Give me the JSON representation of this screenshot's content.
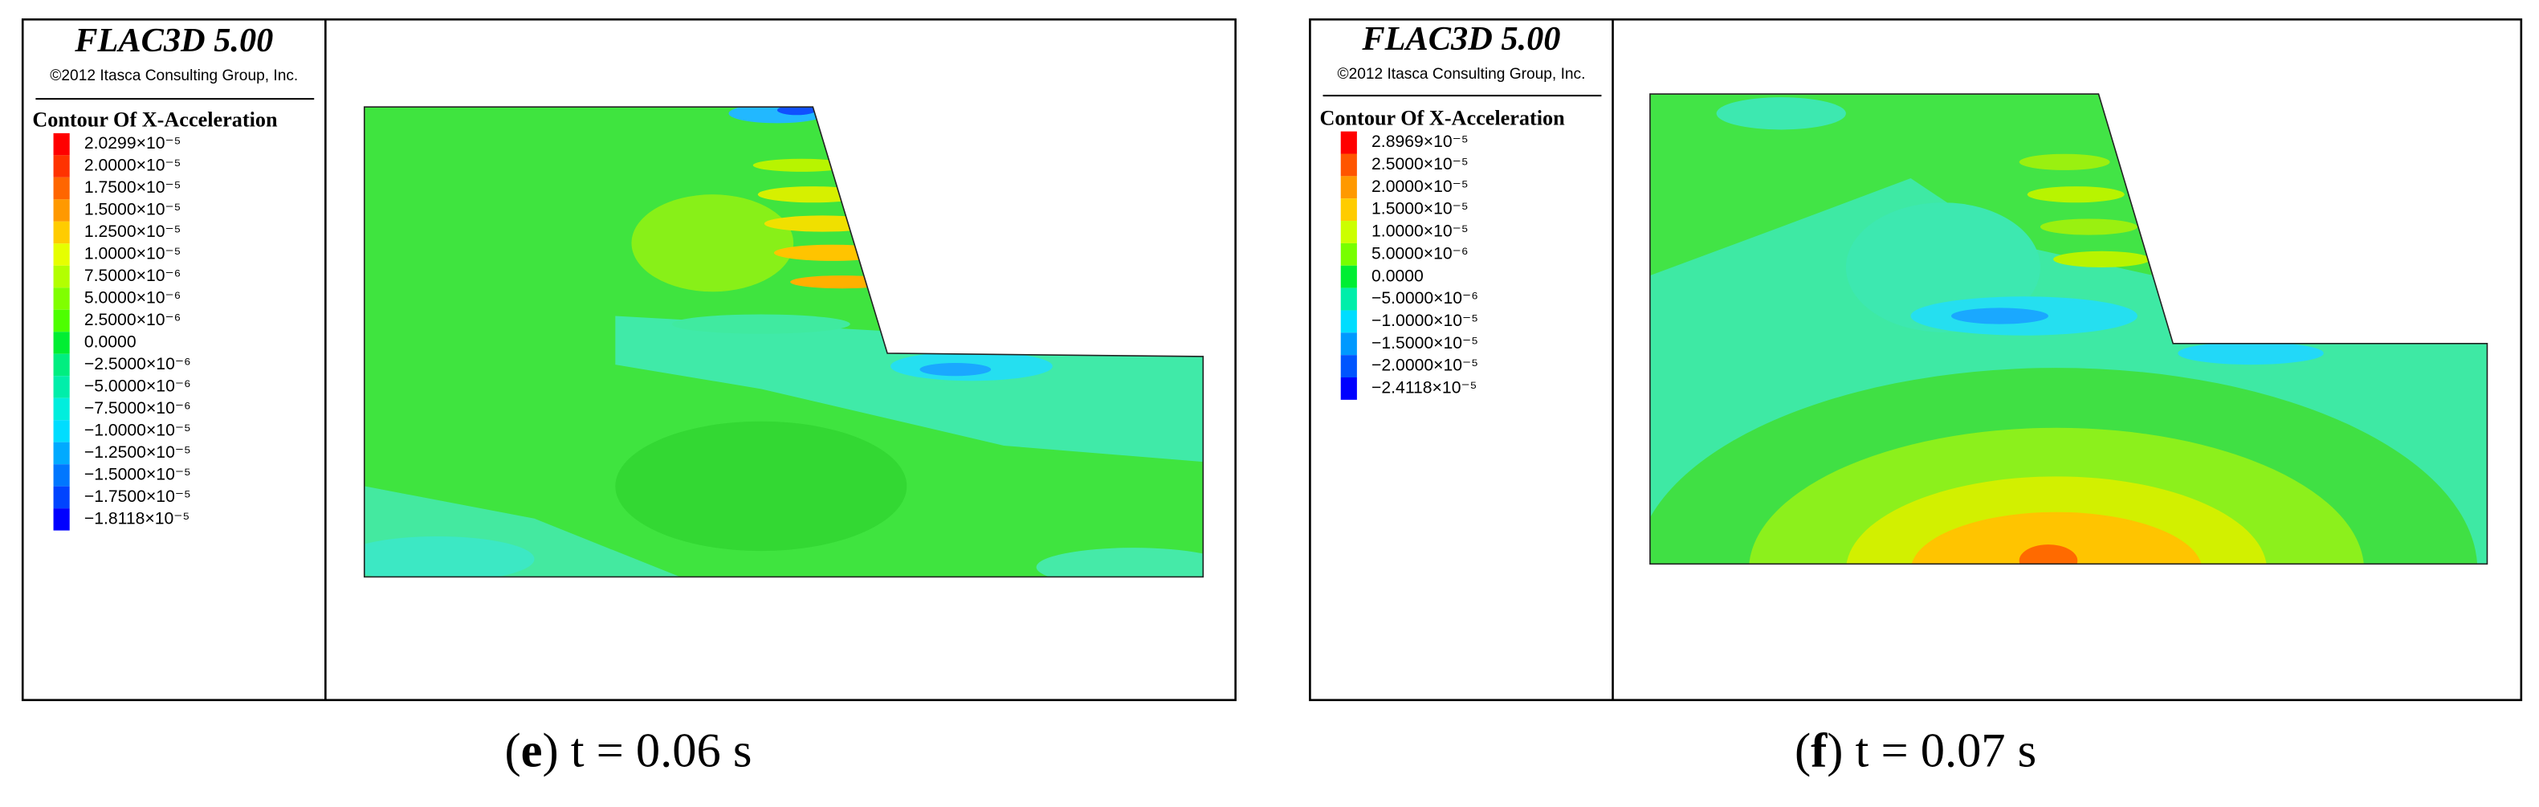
{
  "panels": [
    {
      "header": {
        "title": "FLAC3D 5.00",
        "copyright": "©2012 Itasca Consulting Group, Inc."
      },
      "legend": {
        "title": "Contour Of X-Acceleration",
        "entries": [
          {
            "label": "2.0299×10⁻⁵",
            "color": "#ff0000"
          },
          {
            "label": "2.0000×10⁻⁵",
            "color": "#ff3300"
          },
          {
            "label": "1.7500×10⁻⁵",
            "color": "#ff6600"
          },
          {
            "label": "1.5000×10⁻⁵",
            "color": "#ff9900"
          },
          {
            "label": "1.2500×10⁻⁵",
            "color": "#ffcc00"
          },
          {
            "label": "1.0000×10⁻⁵",
            "color": "#e6ff00"
          },
          {
            "label": "7.5000×10⁻⁶",
            "color": "#b3ff00"
          },
          {
            "label": "5.0000×10⁻⁶",
            "color": "#80ff00"
          },
          {
            "label": "2.5000×10⁻⁶",
            "color": "#4dff00"
          },
          {
            "label": "0.0000",
            "color": "#00ee33"
          },
          {
            "label": "−2.5000×10⁻⁶",
            "color": "#00ee80"
          },
          {
            "label": "−5.0000×10⁻⁶",
            "color": "#00eeaa"
          },
          {
            "label": "−7.5000×10⁻⁶",
            "color": "#00eedd"
          },
          {
            "label": "−1.0000×10⁻⁵",
            "color": "#00ddff"
          },
          {
            "label": "−1.2500×10⁻⁵",
            "color": "#00aaff"
          },
          {
            "label": "−1.5000×10⁻⁵",
            "color": "#0077ff"
          },
          {
            "label": "−1.7500×10⁻⁵",
            "color": "#0044ff"
          },
          {
            "label": "−1.8118×10⁻⁵",
            "color": "#0000ff"
          }
        ]
      },
      "caption": {
        "open": "(",
        "label": "e",
        "text": ") t = 0.06 s"
      }
    },
    {
      "header": {
        "title": "FLAC3D 5.00",
        "copyright": "©2012 Itasca Consulting Group, Inc."
      },
      "legend": {
        "title": "Contour Of X-Acceleration",
        "entries": [
          {
            "label": "2.8969×10⁻⁵",
            "color": "#ff0000"
          },
          {
            "label": "2.5000×10⁻⁵",
            "color": "#ff5500"
          },
          {
            "label": "2.0000×10⁻⁵",
            "color": "#ff9900"
          },
          {
            "label": "1.5000×10⁻⁵",
            "color": "#ffcc00"
          },
          {
            "label": "1.0000×10⁻⁵",
            "color": "#ccff00"
          },
          {
            "label": "5.0000×10⁻⁶",
            "color": "#77ff00"
          },
          {
            "label": "0.0000",
            "color": "#00ee33"
          },
          {
            "label": "−5.0000×10⁻⁶",
            "color": "#00eeaa"
          },
          {
            "label": "−1.0000×10⁻⁵",
            "color": "#00ddff"
          },
          {
            "label": "−1.5000×10⁻⁵",
            "color": "#0099ff"
          },
          {
            "label": "−2.0000×10⁻⁵",
            "color": "#0055ff"
          },
          {
            "label": "−2.4118×10⁻⁵",
            "color": "#0000ff"
          }
        ]
      },
      "caption": {
        "open": "(",
        "label": "f",
        "text": ") t = 0.07 s"
      }
    }
  ]
}
